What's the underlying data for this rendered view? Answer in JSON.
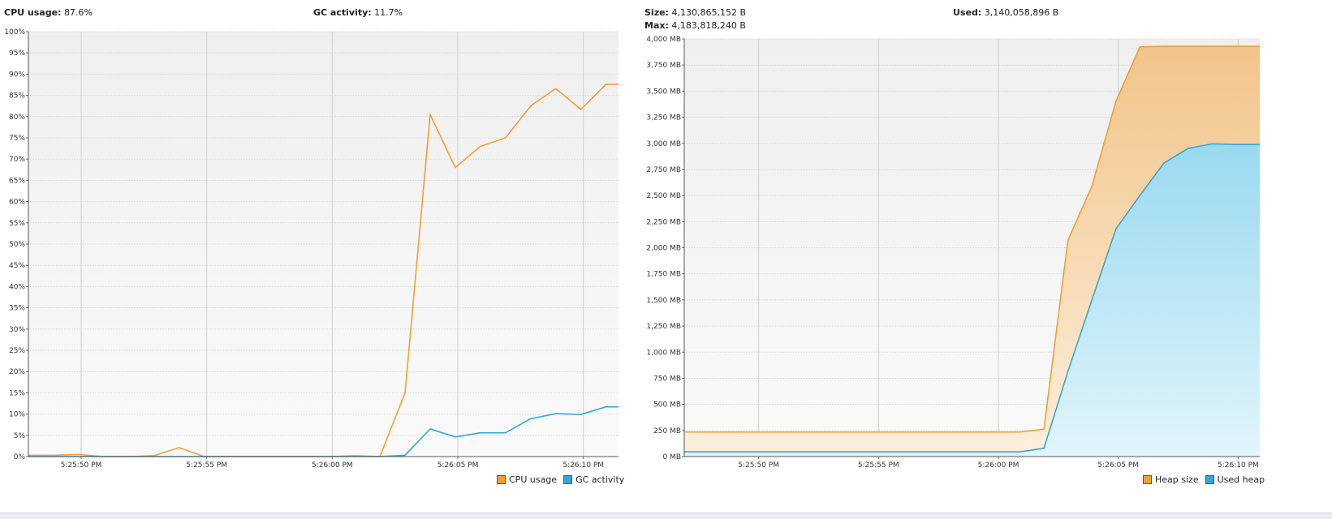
{
  "cpu": {
    "stats": {
      "cpu_label": "CPU usage:",
      "cpu_value": "87.6%",
      "gc_label": "GC activity:",
      "gc_value": "11.7%"
    },
    "legend": [
      {
        "label": "CPU usage",
        "color": "#f0a030"
      },
      {
        "label": "GC activity",
        "color": "#30a8d8"
      }
    ]
  },
  "heap": {
    "stats": {
      "size_label": "Size:",
      "size_value": "4,130,865,152 B",
      "max_label": "Max:",
      "max_value": "4,183,818,240 B",
      "used_label": "Used:",
      "used_value": "3,140,058,896 B"
    },
    "legend": [
      {
        "label": "Heap size",
        "color": "#f0a030"
      },
      {
        "label": "Used heap",
        "color": "#30a8d8"
      }
    ]
  },
  "chart_data": [
    {
      "type": "line",
      "ylim": [
        0,
        100
      ],
      "yticks": [
        "0%",
        "5%",
        "10%",
        "15%",
        "20%",
        "25%",
        "30%",
        "35%",
        "40%",
        "45%",
        "50%",
        "55%",
        "60%",
        "65%",
        "70%",
        "75%",
        "80%",
        "85%",
        "90%",
        "95%",
        "100%"
      ],
      "xlim": [
        0,
        23.5
      ],
      "xticks": [
        {
          "x": 2.1,
          "label": "5:25:50 PM"
        },
        {
          "x": 7.1,
          "label": "5:25:55 PM"
        },
        {
          "x": 12.1,
          "label": "5:26:00 PM"
        },
        {
          "x": 17.1,
          "label": "5:26:05 PM"
        },
        {
          "x": 22.1,
          "label": "5:26:10 PM"
        }
      ],
      "grid": true,
      "legend_position": "bottom-right",
      "series": [
        {
          "name": "CPU usage",
          "x": [
            0,
            1,
            2,
            3,
            4,
            5,
            6,
            7,
            8,
            9,
            10,
            11,
            12,
            13,
            14,
            15,
            16,
            17,
            18,
            19,
            20,
            21,
            22,
            23,
            23.5
          ],
          "values": [
            0.3,
            0.3,
            0.5,
            0,
            0,
            0.2,
            2.1,
            0,
            0,
            0,
            0,
            0,
            0,
            0.2,
            0,
            15,
            80.5,
            68,
            73,
            75,
            82.5,
            86.6,
            81.7,
            87.6,
            87.6
          ]
        },
        {
          "name": "GC activity",
          "x": [
            0,
            1,
            2,
            3,
            4,
            5,
            6,
            7,
            8,
            9,
            10,
            11,
            12,
            13,
            14,
            15,
            16,
            17,
            18,
            19,
            20,
            21,
            22,
            23,
            23.5
          ],
          "values": [
            0,
            0,
            0,
            0,
            0,
            0,
            0,
            0,
            0,
            0,
            0,
            0,
            0,
            0,
            0,
            0.3,
            6.5,
            4.6,
            5.6,
            5.6,
            8.9,
            10.1,
            9.9,
            11.7,
            11.7
          ]
        }
      ]
    },
    {
      "type": "area",
      "ylim": [
        0,
        4000
      ],
      "yticks": [
        "0 MB",
        "250 MB",
        "500 MB",
        "750 MB",
        "1,000 MB",
        "1,250 MB",
        "1,500 MB",
        "1,750 MB",
        "2,000 MB",
        "2,250 MB",
        "2,500 MB",
        "2,750 MB",
        "3,000 MB",
        "3,250 MB",
        "3,500 MB",
        "3,750 MB",
        "4,000 MB"
      ],
      "xlim": [
        0,
        24
      ],
      "xticks": [
        {
          "x": 3.1,
          "label": "5:25:50 PM"
        },
        {
          "x": 8.1,
          "label": "5:25:55 PM"
        },
        {
          "x": 13.1,
          "label": "5:26:00 PM"
        },
        {
          "x": 18.1,
          "label": "5:26:05 PM"
        },
        {
          "x": 23.1,
          "label": "5:26:10 PM"
        }
      ],
      "grid": true,
      "legend_position": "bottom-right",
      "series": [
        {
          "name": "Heap size",
          "x": [
            0,
            1,
            2,
            3,
            4,
            5,
            6,
            7,
            8,
            9,
            10,
            11,
            12,
            13,
            14,
            15,
            16,
            17,
            18,
            19,
            20,
            21,
            22,
            23,
            24
          ],
          "values": [
            235,
            235,
            235,
            235,
            235,
            235,
            235,
            235,
            235,
            235,
            235,
            235,
            235,
            235,
            235,
            262,
            2070,
            2590,
            3400,
            3924,
            3930,
            3930,
            3930,
            3930,
            3930
          ]
        },
        {
          "name": "Used heap",
          "x": [
            0,
            1,
            2,
            3,
            4,
            5,
            6,
            7,
            8,
            9,
            10,
            11,
            12,
            13,
            14,
            15,
            16,
            17,
            18,
            19,
            20,
            21,
            22,
            23,
            24
          ],
          "values": [
            45,
            45,
            45,
            45,
            45,
            45,
            45,
            45,
            45,
            45,
            45,
            45,
            45,
            45,
            45,
            80,
            815,
            1500,
            2180,
            2500,
            2810,
            2950,
            2995,
            2990,
            2990
          ]
        }
      ]
    }
  ]
}
